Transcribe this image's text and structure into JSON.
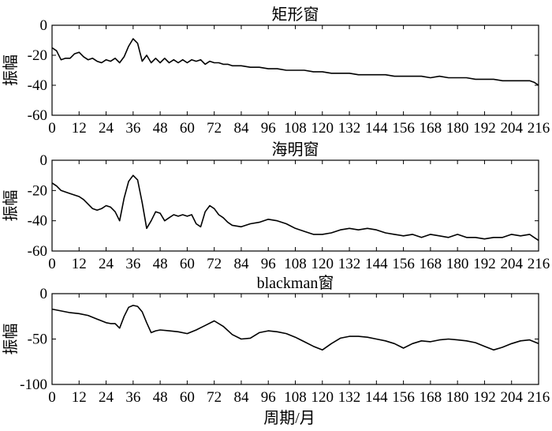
{
  "xlabel": "周期/月",
  "chart_data": [
    {
      "type": "line",
      "title": "矩形窗",
      "xlabel": "",
      "ylabel": "振幅",
      "xlim": [
        0,
        216
      ],
      "ylim": [
        -60,
        0
      ],
      "xticks": [
        0,
        12,
        24,
        36,
        48,
        60,
        72,
        84,
        96,
        108,
        120,
        132,
        144,
        156,
        168,
        180,
        192,
        204,
        216
      ],
      "yticks": [
        0,
        -20,
        -40,
        -60
      ],
      "grid": false,
      "series": [
        {
          "x": [
            0,
            2,
            4,
            6,
            8,
            10,
            12,
            14,
            16,
            18,
            20,
            22,
            24,
            26,
            28,
            30,
            32,
            34,
            36,
            38,
            40,
            42,
            44,
            46,
            48,
            50,
            52,
            54,
            56,
            58,
            60,
            62,
            64,
            66,
            68,
            70,
            72,
            74,
            76,
            78,
            80,
            84,
            88,
            92,
            96,
            100,
            104,
            108,
            112,
            116,
            120,
            124,
            128,
            132,
            136,
            140,
            144,
            148,
            152,
            156,
            160,
            164,
            168,
            172,
            176,
            180,
            184,
            188,
            192,
            196,
            200,
            204,
            208,
            212,
            214,
            216
          ],
          "y": [
            -15,
            -17,
            -23,
            -22,
            -22,
            -19,
            -18,
            -21,
            -23,
            -22,
            -24,
            -25,
            -23,
            -24,
            -22,
            -25,
            -21,
            -14,
            -9,
            -12,
            -24,
            -20,
            -25,
            -22,
            -25,
            -22,
            -25,
            -23,
            -25,
            -23,
            -25,
            -23,
            -24,
            -23,
            -26,
            -24,
            -25,
            -25,
            -26,
            -26,
            -27,
            -27,
            -28,
            -28,
            -29,
            -29,
            -30,
            -30,
            -30,
            -31,
            -31,
            -32,
            -32,
            -32,
            -33,
            -33,
            -33,
            -33,
            -34,
            -34,
            -34,
            -34,
            -35,
            -34,
            -35,
            -35,
            -35,
            -36,
            -36,
            -36,
            -37,
            -37,
            -37,
            -37,
            -38,
            -40
          ]
        }
      ]
    },
    {
      "type": "line",
      "title": "海明窗",
      "xlabel": "",
      "ylabel": "振幅",
      "xlim": [
        0,
        216
      ],
      "ylim": [
        -60,
        0
      ],
      "xticks": [
        0,
        12,
        24,
        36,
        48,
        60,
        72,
        84,
        96,
        108,
        120,
        132,
        144,
        156,
        168,
        180,
        192,
        204,
        216
      ],
      "yticks": [
        0,
        -20,
        -40,
        -60
      ],
      "grid": false,
      "series": [
        {
          "x": [
            0,
            2,
            4,
            6,
            8,
            10,
            12,
            14,
            16,
            18,
            20,
            22,
            24,
            26,
            28,
            30,
            32,
            34,
            36,
            38,
            40,
            42,
            44,
            46,
            48,
            50,
            52,
            54,
            56,
            58,
            60,
            62,
            64,
            66,
            68,
            70,
            72,
            74,
            76,
            78,
            80,
            84,
            88,
            92,
            96,
            100,
            104,
            108,
            112,
            116,
            120,
            124,
            128,
            132,
            136,
            140,
            144,
            148,
            152,
            156,
            160,
            164,
            168,
            172,
            176,
            180,
            184,
            188,
            192,
            196,
            200,
            204,
            208,
            212,
            214,
            216
          ],
          "y": [
            -15,
            -17,
            -20,
            -21,
            -22,
            -23,
            -24,
            -26,
            -29,
            -32,
            -33,
            -32,
            -30,
            -31,
            -34,
            -40,
            -25,
            -14,
            -10,
            -13,
            -28,
            -45,
            -40,
            -34,
            -35,
            -40,
            -38,
            -36,
            -37,
            -36,
            -37,
            -36,
            -42,
            -44,
            -34,
            -30,
            -32,
            -36,
            -38,
            -41,
            -43,
            -44,
            -42,
            -41,
            -39,
            -40,
            -42,
            -45,
            -47,
            -49,
            -49,
            -48,
            -46,
            -45,
            -46,
            -45,
            -46,
            -48,
            -49,
            -50,
            -49,
            -51,
            -49,
            -50,
            -51,
            -49,
            -51,
            -51,
            -52,
            -51,
            -51,
            -49,
            -50,
            -49,
            -51,
            -53
          ]
        }
      ]
    },
    {
      "type": "line",
      "title": "blackman窗",
      "xlabel": "周期/月",
      "ylabel": "振幅",
      "xlim": [
        0,
        216
      ],
      "ylim": [
        -100,
        0
      ],
      "xticks": [
        0,
        12,
        24,
        36,
        48,
        60,
        72,
        84,
        96,
        108,
        120,
        132,
        144,
        156,
        168,
        180,
        192,
        204,
        216
      ],
      "yticks": [
        0,
        -50,
        -100
      ],
      "grid": false,
      "series": [
        {
          "x": [
            0,
            4,
            8,
            12,
            16,
            20,
            24,
            26,
            28,
            30,
            32,
            34,
            36,
            38,
            40,
            42,
            44,
            46,
            48,
            52,
            56,
            60,
            64,
            68,
            72,
            76,
            80,
            84,
            88,
            92,
            96,
            100,
            104,
            108,
            112,
            116,
            120,
            124,
            128,
            132,
            136,
            140,
            144,
            148,
            152,
            156,
            160,
            164,
            168,
            172,
            176,
            180,
            184,
            188,
            192,
            196,
            200,
            204,
            208,
            212,
            216
          ],
          "y": [
            -17,
            -19,
            -21,
            -22,
            -24,
            -28,
            -32,
            -33,
            -33,
            -38,
            -25,
            -15,
            -13,
            -14,
            -20,
            -32,
            -43,
            -41,
            -40,
            -41,
            -42,
            -44,
            -40,
            -35,
            -30,
            -36,
            -45,
            -50,
            -49,
            -43,
            -41,
            -42,
            -44,
            -48,
            -53,
            -58,
            -62,
            -55,
            -49,
            -47,
            -47,
            -48,
            -50,
            -52,
            -55,
            -60,
            -55,
            -52,
            -53,
            -51,
            -50,
            -51,
            -52,
            -54,
            -58,
            -62,
            -59,
            -55,
            -52,
            -51,
            -55
          ]
        }
      ]
    }
  ]
}
